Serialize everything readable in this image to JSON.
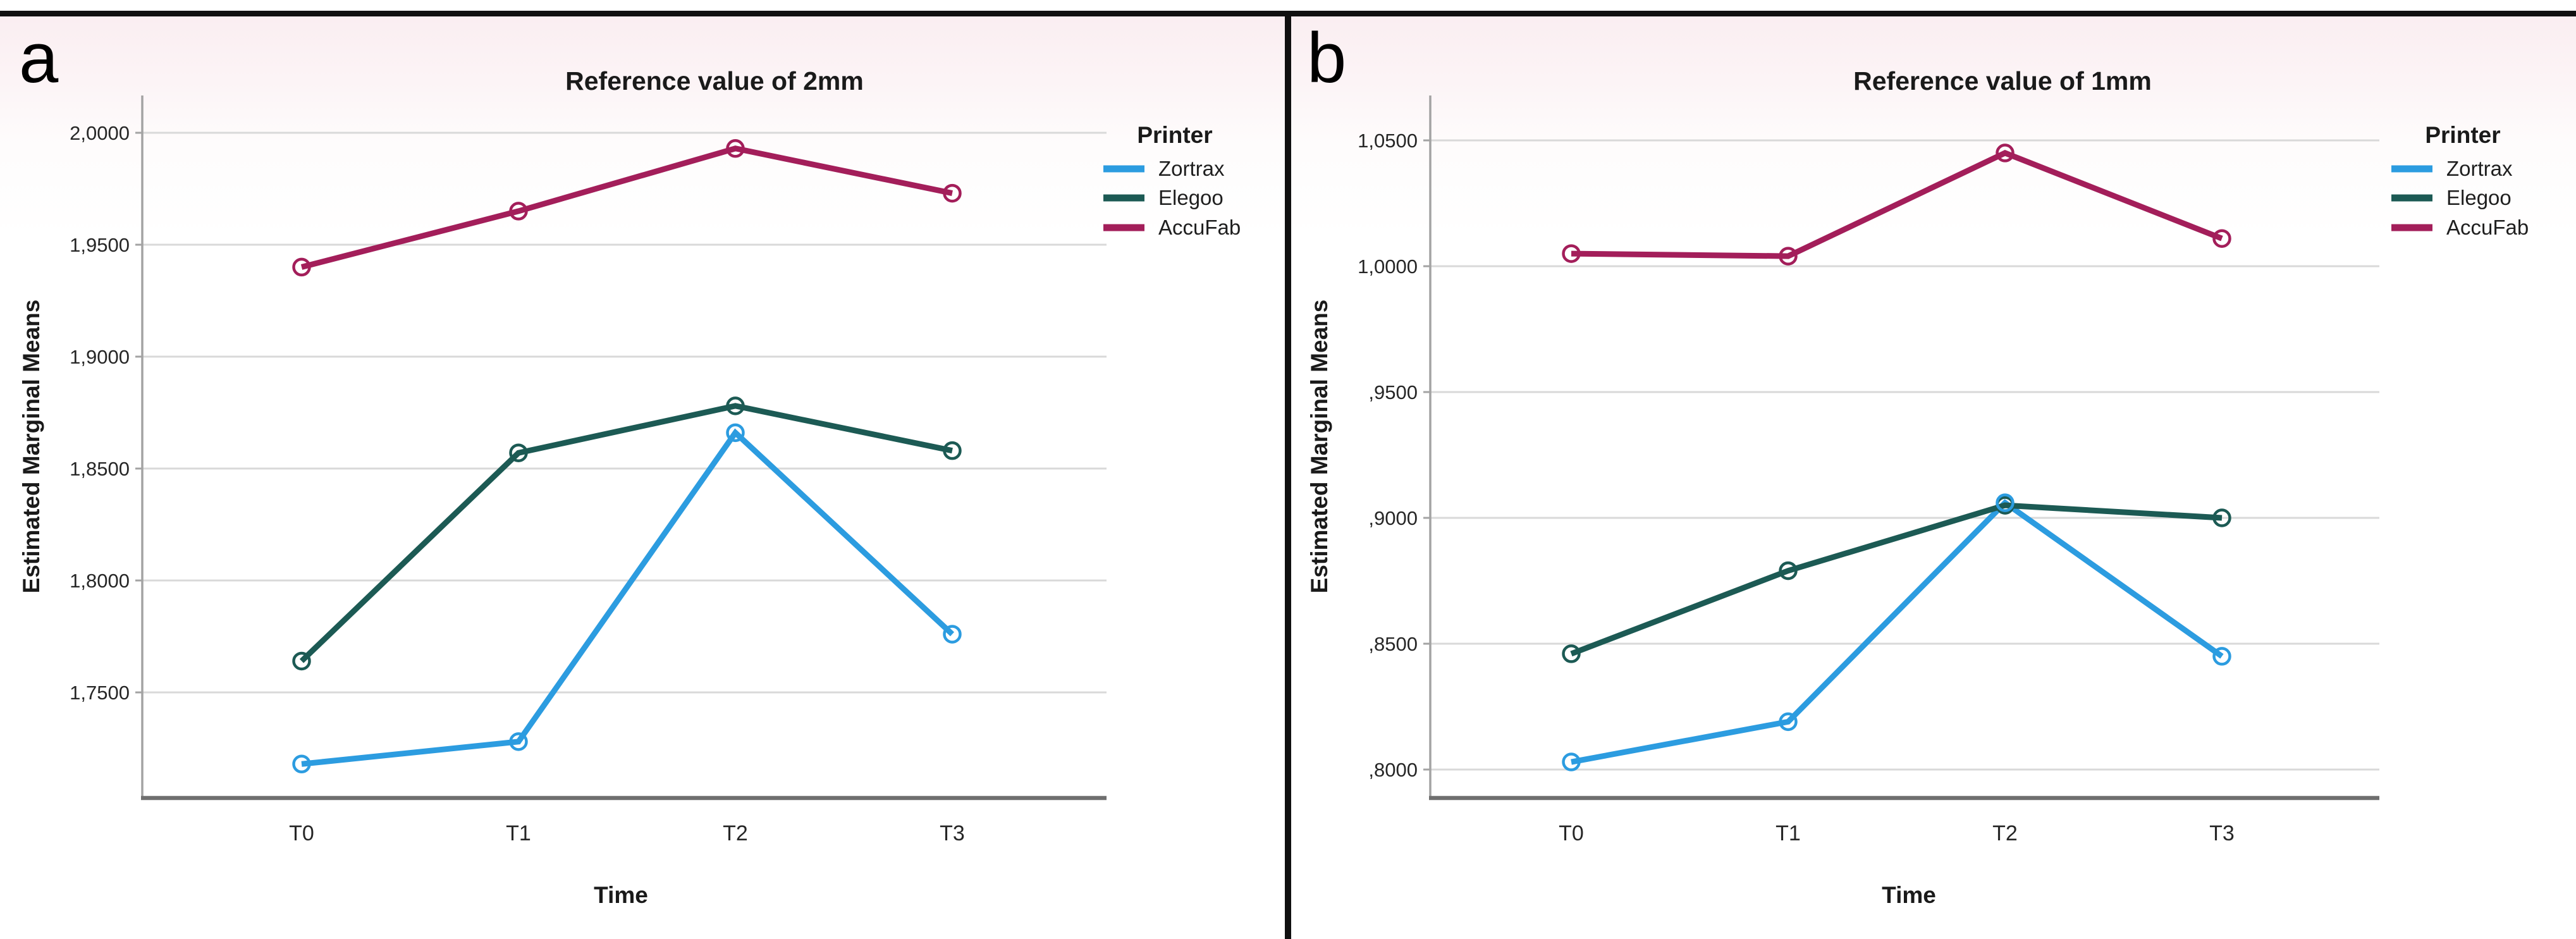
{
  "page": {
    "top_border_color": "#101010",
    "panel_divider_color": "#101010",
    "background_tint": "#faeef1"
  },
  "chart_data": [
    {
      "type": "line",
      "panel_label": "a",
      "title": "Reference value of 2mm",
      "xlabel": "Time",
      "ylabel": "Estimated Marginal Means",
      "legend_title": "Printer",
      "legend_position": "right",
      "grid": "horizontal",
      "categories": [
        "T0",
        "T1",
        "T2",
        "T3"
      ],
      "series": [
        {
          "name": "Zortrax",
          "color": "#2C9CE0",
          "values": [
            1.718,
            1.728,
            1.866,
            1.776
          ]
        },
        {
          "name": "Elegoo",
          "color": "#1C5A54",
          "values": [
            1.764,
            1.857,
            1.878,
            1.858
          ]
        },
        {
          "name": "AccuFab",
          "color": "#A31E5A",
          "values": [
            1.94,
            1.965,
            1.993,
            1.973
          ]
        }
      ],
      "y_gridline_values": [
        1.75,
        1.8,
        1.85,
        1.9,
        1.95,
        2.0
      ],
      "y_tick_labels": [
        "1,7500",
        "1,8000",
        "1,8500",
        "1,9000",
        "1,9500",
        "2,0000"
      ],
      "ylim": [
        1.702,
        2.02
      ]
    },
    {
      "type": "line",
      "panel_label": "b",
      "title": "Reference value of 1mm",
      "xlabel": "Time",
      "ylabel": "Estimated Marginal Means",
      "legend_title": "Printer",
      "legend_position": "right",
      "grid": "horizontal",
      "categories": [
        "T0",
        "T1",
        "T2",
        "T3"
      ],
      "series": [
        {
          "name": "Zortrax",
          "color": "#2C9CE0",
          "values": [
            0.803,
            0.819,
            0.906,
            0.845
          ]
        },
        {
          "name": "Elegoo",
          "color": "#1C5A54",
          "values": [
            0.846,
            0.879,
            0.905,
            0.9
          ]
        },
        {
          "name": "AccuFab",
          "color": "#A31E5A",
          "values": [
            1.005,
            1.004,
            1.045,
            1.011
          ]
        }
      ],
      "y_gridline_values": [
        0.8,
        0.85,
        0.9,
        0.95,
        1.0,
        1.05
      ],
      "y_tick_labels": [
        ",8000",
        ",8500",
        ",9000",
        ",9500",
        "1,0000",
        "1,0500"
      ],
      "ylim": [
        0.789,
        1.062
      ]
    }
  ]
}
